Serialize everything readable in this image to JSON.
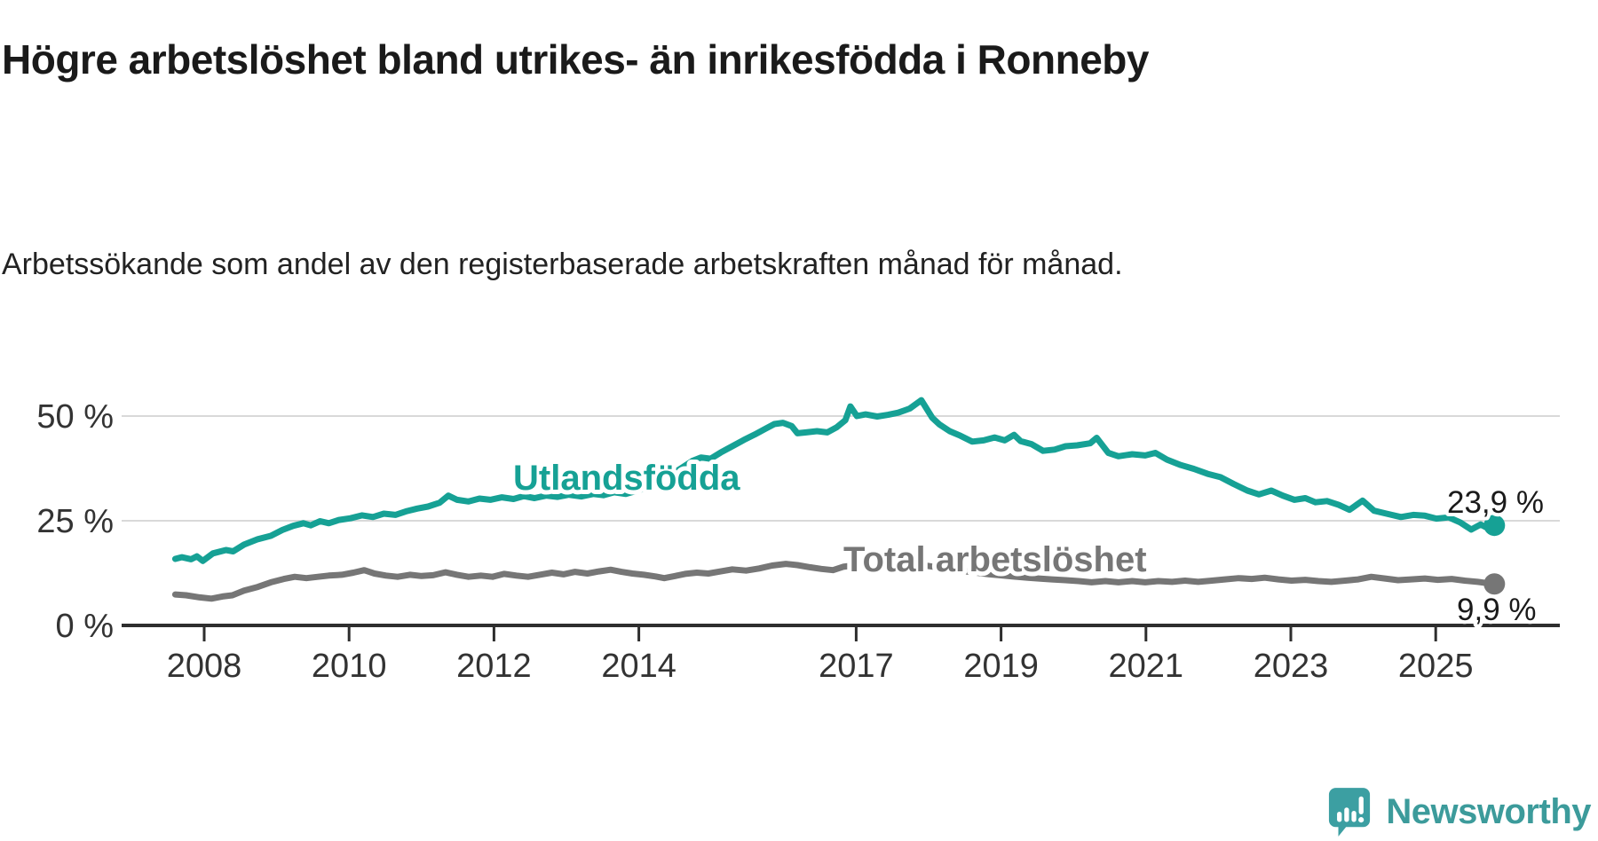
{
  "chart_data": {
    "type": "line",
    "title": "Högre arbetslöshet bland utrikes- än inrikesfödda i Ronneby",
    "subtitle": "Arbetssökande som andel av den registerbaserade arbetskraften månad för månad.",
    "unit": "%",
    "grid": true,
    "legend_position": "inline-labels",
    "x_axis": {
      "tick_years": [
        2008,
        2010,
        2012,
        2014,
        2017,
        2019,
        2021,
        2023,
        2025
      ],
      "range_years": [
        2007.5,
        2026.3
      ]
    },
    "y_axis": {
      "tick_labels": [
        "0 %",
        "25 %",
        "50 %"
      ],
      "tick_values": [
        0,
        25,
        50
      ],
      "range": [
        0,
        57
      ]
    },
    "series": [
      {
        "name": "Utlandsfödda",
        "color": "#16a195",
        "end_value": 23.9,
        "end_label": "23,9 %",
        "points": [
          [
            2007.6,
            15.9
          ],
          [
            2007.69,
            16.3
          ],
          [
            2007.82,
            15.8
          ],
          [
            2007.9,
            16.5
          ],
          [
            2007.98,
            15.4
          ],
          [
            2008.12,
            17.2
          ],
          [
            2008.3,
            18.0
          ],
          [
            2008.4,
            17.7
          ],
          [
            2008.55,
            19.3
          ],
          [
            2008.74,
            20.6
          ],
          [
            2008.92,
            21.4
          ],
          [
            2009.08,
            22.8
          ],
          [
            2009.23,
            23.8
          ],
          [
            2009.37,
            24.4
          ],
          [
            2009.47,
            23.9
          ],
          [
            2009.6,
            24.9
          ],
          [
            2009.72,
            24.4
          ],
          [
            2009.86,
            25.2
          ],
          [
            2010.02,
            25.6
          ],
          [
            2010.18,
            26.3
          ],
          [
            2010.33,
            25.9
          ],
          [
            2010.48,
            26.7
          ],
          [
            2010.64,
            26.4
          ],
          [
            2010.8,
            27.3
          ],
          [
            2010.94,
            27.9
          ],
          [
            2011.09,
            28.4
          ],
          [
            2011.25,
            29.3
          ],
          [
            2011.37,
            31.0
          ],
          [
            2011.49,
            30.0
          ],
          [
            2011.65,
            29.6
          ],
          [
            2011.8,
            30.3
          ],
          [
            2011.95,
            30.0
          ],
          [
            2012.11,
            30.6
          ],
          [
            2012.27,
            30.2
          ],
          [
            2012.41,
            30.9
          ],
          [
            2012.56,
            30.4
          ],
          [
            2012.72,
            31.0
          ],
          [
            2012.88,
            30.7
          ],
          [
            2013.03,
            31.2
          ],
          [
            2013.21,
            30.8
          ],
          [
            2013.37,
            31.4
          ],
          [
            2013.51,
            31.1
          ],
          [
            2013.66,
            31.8
          ],
          [
            2013.82,
            31.4
          ],
          [
            2013.98,
            32.2
          ],
          [
            2014.13,
            33.0
          ],
          [
            2014.28,
            34.2
          ],
          [
            2014.43,
            35.8
          ],
          [
            2014.59,
            37.6
          ],
          [
            2014.74,
            39.3
          ],
          [
            2014.86,
            40.1
          ],
          [
            2014.99,
            39.8
          ],
          [
            2015.13,
            41.3
          ],
          [
            2015.29,
            42.8
          ],
          [
            2015.45,
            44.3
          ],
          [
            2015.6,
            45.6
          ],
          [
            2015.75,
            47.0
          ],
          [
            2015.87,
            48.1
          ],
          [
            2015.99,
            48.4
          ],
          [
            2016.11,
            47.6
          ],
          [
            2016.19,
            45.9
          ],
          [
            2016.31,
            46.1
          ],
          [
            2016.46,
            46.4
          ],
          [
            2016.6,
            46.1
          ],
          [
            2016.73,
            47.3
          ],
          [
            2016.85,
            49.0
          ],
          [
            2016.92,
            52.3
          ],
          [
            2017.01,
            50.0
          ],
          [
            2017.13,
            50.4
          ],
          [
            2017.29,
            49.9
          ],
          [
            2017.44,
            50.3
          ],
          [
            2017.58,
            50.8
          ],
          [
            2017.74,
            51.8
          ],
          [
            2017.9,
            53.8
          ],
          [
            2018.05,
            49.6
          ],
          [
            2018.15,
            48.0
          ],
          [
            2018.29,
            46.4
          ],
          [
            2018.44,
            45.3
          ],
          [
            2018.6,
            43.9
          ],
          [
            2018.76,
            44.2
          ],
          [
            2018.91,
            44.9
          ],
          [
            2019.05,
            44.2
          ],
          [
            2019.18,
            45.5
          ],
          [
            2019.27,
            44.0
          ],
          [
            2019.42,
            43.3
          ],
          [
            2019.58,
            41.7
          ],
          [
            2019.74,
            42.0
          ],
          [
            2019.89,
            42.8
          ],
          [
            2020.05,
            43.0
          ],
          [
            2020.23,
            43.5
          ],
          [
            2020.32,
            44.8
          ],
          [
            2020.48,
            41.2
          ],
          [
            2020.62,
            40.4
          ],
          [
            2020.81,
            40.9
          ],
          [
            2020.99,
            40.6
          ],
          [
            2021.13,
            41.2
          ],
          [
            2021.29,
            39.6
          ],
          [
            2021.48,
            38.3
          ],
          [
            2021.66,
            37.4
          ],
          [
            2021.85,
            36.2
          ],
          [
            2022.03,
            35.4
          ],
          [
            2022.21,
            33.8
          ],
          [
            2022.4,
            32.2
          ],
          [
            2022.56,
            31.3
          ],
          [
            2022.73,
            32.2
          ],
          [
            2022.89,
            31.0
          ],
          [
            2023.05,
            30.0
          ],
          [
            2023.2,
            30.4
          ],
          [
            2023.34,
            29.4
          ],
          [
            2023.5,
            29.7
          ],
          [
            2023.66,
            28.8
          ],
          [
            2023.81,
            27.6
          ],
          [
            2023.99,
            29.8
          ],
          [
            2024.15,
            27.4
          ],
          [
            2024.32,
            26.7
          ],
          [
            2024.52,
            25.9
          ],
          [
            2024.69,
            26.4
          ],
          [
            2024.85,
            26.2
          ],
          [
            2025.01,
            25.5
          ],
          [
            2025.18,
            25.8
          ],
          [
            2025.34,
            24.6
          ],
          [
            2025.49,
            22.9
          ],
          [
            2025.62,
            24.1
          ],
          [
            2025.71,
            23.3
          ],
          [
            2025.81,
            23.9
          ]
        ]
      },
      {
        "name": "Total arbetslöshet",
        "color": "#767676",
        "end_value": 9.9,
        "end_label": "9,9 %",
        "points": [
          [
            2007.6,
            7.4
          ],
          [
            2007.75,
            7.2
          ],
          [
            2007.94,
            6.7
          ],
          [
            2008.1,
            6.4
          ],
          [
            2008.25,
            6.9
          ],
          [
            2008.39,
            7.2
          ],
          [
            2008.55,
            8.3
          ],
          [
            2008.74,
            9.2
          ],
          [
            2008.92,
            10.3
          ],
          [
            2009.1,
            11.1
          ],
          [
            2009.25,
            11.6
          ],
          [
            2009.41,
            11.3
          ],
          [
            2009.57,
            11.6
          ],
          [
            2009.72,
            11.9
          ],
          [
            2009.9,
            12.1
          ],
          [
            2010.06,
            12.6
          ],
          [
            2010.21,
            13.2
          ],
          [
            2010.35,
            12.4
          ],
          [
            2010.51,
            11.9
          ],
          [
            2010.67,
            11.6
          ],
          [
            2010.84,
            12.1
          ],
          [
            2011.0,
            11.8
          ],
          [
            2011.16,
            12.0
          ],
          [
            2011.33,
            12.7
          ],
          [
            2011.49,
            12.1
          ],
          [
            2011.65,
            11.6
          ],
          [
            2011.82,
            11.9
          ],
          [
            2011.98,
            11.6
          ],
          [
            2012.14,
            12.3
          ],
          [
            2012.31,
            11.9
          ],
          [
            2012.47,
            11.6
          ],
          [
            2012.63,
            12.1
          ],
          [
            2012.8,
            12.6
          ],
          [
            2012.96,
            12.2
          ],
          [
            2013.12,
            12.8
          ],
          [
            2013.29,
            12.4
          ],
          [
            2013.45,
            12.9
          ],
          [
            2013.61,
            13.3
          ],
          [
            2013.76,
            12.8
          ],
          [
            2013.91,
            12.4
          ],
          [
            2014.07,
            12.1
          ],
          [
            2014.23,
            11.7
          ],
          [
            2014.35,
            11.3
          ],
          [
            2014.5,
            11.8
          ],
          [
            2014.64,
            12.3
          ],
          [
            2014.8,
            12.6
          ],
          [
            2014.96,
            12.4
          ],
          [
            2015.13,
            12.9
          ],
          [
            2015.29,
            13.4
          ],
          [
            2015.48,
            13.1
          ],
          [
            2015.66,
            13.6
          ],
          [
            2015.84,
            14.3
          ],
          [
            2016.03,
            14.7
          ],
          [
            2016.19,
            14.4
          ],
          [
            2016.36,
            13.9
          ],
          [
            2016.52,
            13.5
          ],
          [
            2016.68,
            13.2
          ],
          [
            2016.82,
            14.0
          ],
          [
            2017.0,
            14.4
          ],
          [
            2017.19,
            14.7
          ],
          [
            2017.37,
            14.2
          ],
          [
            2017.56,
            13.8
          ],
          [
            2017.74,
            14.1
          ],
          [
            2017.92,
            14.4
          ],
          [
            2018.11,
            13.9
          ],
          [
            2018.29,
            13.4
          ],
          [
            2018.47,
            13.0
          ],
          [
            2018.66,
            12.6
          ],
          [
            2018.84,
            12.2
          ],
          [
            2019.03,
            11.9
          ],
          [
            2019.21,
            11.6
          ],
          [
            2019.37,
            11.4
          ],
          [
            2019.52,
            11.2
          ],
          [
            2019.7,
            11.0
          ],
          [
            2019.89,
            10.8
          ],
          [
            2020.07,
            10.6
          ],
          [
            2020.25,
            10.3
          ],
          [
            2020.44,
            10.6
          ],
          [
            2020.62,
            10.3
          ],
          [
            2020.81,
            10.6
          ],
          [
            2020.99,
            10.3
          ],
          [
            2021.17,
            10.6
          ],
          [
            2021.36,
            10.4
          ],
          [
            2021.54,
            10.7
          ],
          [
            2021.72,
            10.4
          ],
          [
            2021.91,
            10.7
          ],
          [
            2022.09,
            11.0
          ],
          [
            2022.28,
            11.3
          ],
          [
            2022.46,
            11.1
          ],
          [
            2022.64,
            11.4
          ],
          [
            2022.83,
            11.0
          ],
          [
            2023.01,
            10.7
          ],
          [
            2023.2,
            10.9
          ],
          [
            2023.38,
            10.6
          ],
          [
            2023.56,
            10.4
          ],
          [
            2023.75,
            10.7
          ],
          [
            2023.93,
            11.0
          ],
          [
            2024.11,
            11.6
          ],
          [
            2024.3,
            11.2
          ],
          [
            2024.48,
            10.8
          ],
          [
            2024.66,
            11.0
          ],
          [
            2024.85,
            11.2
          ],
          [
            2025.03,
            10.9
          ],
          [
            2025.22,
            11.1
          ],
          [
            2025.4,
            10.7
          ],
          [
            2025.58,
            10.4
          ],
          [
            2025.71,
            10.1
          ],
          [
            2025.81,
            9.9
          ]
        ]
      }
    ]
  },
  "branding": {
    "logo_text": "Newsworthy",
    "logo_icon": "newsworthy-speech-bubble-chart-icon",
    "logo_color": "#3c9b9b"
  }
}
